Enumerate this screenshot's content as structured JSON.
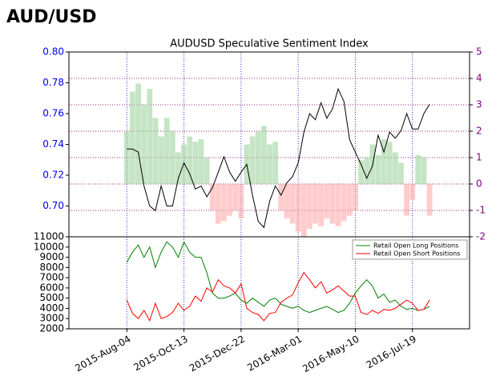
{
  "header": {
    "title": "AUD/USD"
  },
  "chart_data": [
    {
      "type": "line",
      "title": "AUDUSD Speculative Sentiment Index",
      "x": [
        "2015-08-04",
        "2015-08-11",
        "2015-08-18",
        "2015-08-25",
        "2015-09-01",
        "2015-09-08",
        "2015-09-15",
        "2015-09-22",
        "2015-09-29",
        "2015-10-06",
        "2015-10-13",
        "2015-10-20",
        "2015-10-27",
        "2015-11-03",
        "2015-11-10",
        "2015-11-17",
        "2015-11-24",
        "2015-12-01",
        "2015-12-08",
        "2015-12-15",
        "2015-12-22",
        "2015-12-29",
        "2016-01-05",
        "2016-01-12",
        "2016-01-19",
        "2016-01-26",
        "2016-02-02",
        "2016-02-09",
        "2016-02-16",
        "2016-02-23",
        "2016-03-01",
        "2016-03-08",
        "2016-03-15",
        "2016-03-22",
        "2016-03-29",
        "2016-04-05",
        "2016-04-12",
        "2016-04-19",
        "2016-04-26",
        "2016-05-03",
        "2016-05-10",
        "2016-05-17",
        "2016-05-24",
        "2016-05-31",
        "2016-06-07",
        "2016-06-14",
        "2016-06-21",
        "2016-06-28",
        "2016-07-05",
        "2016-07-12",
        "2016-07-19",
        "2016-07-26",
        "2016-08-02",
        "2016-08-09"
      ],
      "xlim": [
        "2015-05-25",
        "2016-09-27"
      ],
      "series": [
        {
          "color": "#000000",
          "values": [
            0.737,
            0.737,
            0.735,
            0.713,
            0.7,
            0.697,
            0.713,
            0.7,
            0.7,
            0.718,
            0.728,
            0.721,
            0.711,
            0.713,
            0.706,
            0.712,
            0.722,
            0.732,
            0.722,
            0.716,
            0.722,
            0.727,
            0.707,
            0.69,
            0.686,
            0.703,
            0.713,
            0.707,
            0.715,
            0.719,
            0.728,
            0.748,
            0.76,
            0.756,
            0.767,
            0.757,
            0.763,
            0.776,
            0.768,
            0.743,
            0.735,
            0.727,
            0.718,
            0.726,
            0.746,
            0.735,
            0.748,
            0.744,
            0.749,
            0.76,
            0.75,
            0.75,
            0.76,
            0.766
          ]
        },
        {
          "type": "bar",
          "axis": "y2",
          "color": "#9fd39f",
          "negative_color": "#ffa8a8",
          "values": [
            2.0,
            3.5,
            3.8,
            3.0,
            3.6,
            2.5,
            1.8,
            2.5,
            2.0,
            1.2,
            1.5,
            1.8,
            1.6,
            1.7,
            1.0,
            -1.0,
            -1.5,
            -1.4,
            -1.2,
            -1.0,
            -1.3,
            1.5,
            1.8,
            2.0,
            2.2,
            1.5,
            1.6,
            -1.0,
            -1.3,
            -1.5,
            -1.8,
            -2.0,
            -1.7,
            -1.5,
            -1.6,
            -1.3,
            -1.5,
            -1.6,
            -1.4,
            -1.2,
            -1.0,
            0.9,
            1.0,
            1.5,
            1.1,
            1.7,
            1.6,
            1.2,
            0.8,
            -1.2,
            -0.6,
            1.1,
            1.0,
            -1.2
          ]
        }
      ],
      "ylim": [
        0.68,
        0.8
      ],
      "yticks": [
        {
          "value": 0.7,
          "label": "0.70"
        },
        0.72,
        0.74,
        0.76,
        0.78,
        {
          "value": 0.8,
          "label": "0.80"
        }
      ],
      "y2lim": [
        -2,
        5
      ],
      "y2ticks": [
        -2,
        -1,
        0,
        1,
        2,
        3,
        4,
        5
      ]
    },
    {
      "type": "line",
      "x": [
        "2015-08-04",
        "2015-08-11",
        "2015-08-18",
        "2015-08-25",
        "2015-09-01",
        "2015-09-08",
        "2015-09-15",
        "2015-09-22",
        "2015-09-29",
        "2015-10-06",
        "2015-10-13",
        "2015-10-20",
        "2015-10-27",
        "2015-11-03",
        "2015-11-10",
        "2015-11-17",
        "2015-11-24",
        "2015-12-01",
        "2015-12-08",
        "2015-12-15",
        "2015-12-22",
        "2015-12-29",
        "2016-01-05",
        "2016-01-12",
        "2016-01-19",
        "2016-01-26",
        "2016-02-02",
        "2016-02-09",
        "2016-02-16",
        "2016-02-23",
        "2016-03-01",
        "2016-03-08",
        "2016-03-15",
        "2016-03-22",
        "2016-03-29",
        "2016-04-05",
        "2016-04-12",
        "2016-04-19",
        "2016-04-26",
        "2016-05-03",
        "2016-05-10",
        "2016-05-17",
        "2016-05-24",
        "2016-05-31",
        "2016-06-07",
        "2016-06-14",
        "2016-06-21",
        "2016-06-28",
        "2016-07-05",
        "2016-07-12",
        "2016-07-19",
        "2016-07-26",
        "2016-08-02",
        "2016-08-09"
      ],
      "xlim": [
        "2015-05-25",
        "2016-09-27"
      ],
      "xticks": [
        {
          "value": "2015-08-04",
          "label": "2015-Aug-04"
        },
        {
          "value": "2015-10-13",
          "label": "2015-Oct-13"
        },
        {
          "value": "2015-12-22",
          "label": "2015-Dec-22"
        },
        {
          "value": "2016-03-01",
          "label": "2016-Mar-01"
        },
        {
          "value": "2016-05-10",
          "label": "2016-May-10"
        },
        {
          "value": "2016-07-19",
          "label": "2016-Jul-19"
        }
      ],
      "series": [
        {
          "name": "Retail Open Long Positions",
          "color": "#008000",
          "values": [
            8500,
            9500,
            10200,
            9000,
            10000,
            8000,
            9500,
            10500,
            10000,
            9000,
            10500,
            9500,
            9000,
            9000,
            7500,
            5500,
            5000,
            5000,
            5200,
            5500,
            4800,
            4500,
            5000,
            4600,
            4200,
            4800,
            5000,
            4400,
            4200,
            4000,
            4200,
            3800,
            3600,
            3800,
            4000,
            4200,
            3900,
            3600,
            3800,
            4500,
            5500,
            6200,
            6800,
            6200,
            5000,
            5400,
            4600,
            4800,
            4200,
            3900,
            4000,
            3800,
            3900,
            4200
          ]
        },
        {
          "name": "Retail Open Short Positions",
          "color": "#ff0000",
          "values": [
            4800,
            3500,
            3000,
            3800,
            2800,
            4500,
            3000,
            3200,
            3600,
            4500,
            3800,
            4200,
            5200,
            4700,
            6000,
            5600,
            6800,
            6200,
            6000,
            5500,
            6400,
            4000,
            3600,
            3400,
            2800,
            3500,
            3600,
            4600,
            5000,
            5300,
            6500,
            7500,
            6800,
            6000,
            6600,
            5500,
            5800,
            6200,
            5700,
            5200,
            5200,
            3600,
            3400,
            3800,
            3500,
            3900,
            3800,
            4000,
            4400,
            4800,
            4500,
            3800,
            3900,
            4800
          ]
        }
      ],
      "ylim": [
        2000,
        11000
      ],
      "yticks": [
        2000,
        3000,
        4000,
        5000,
        6000,
        7000,
        8000,
        9000,
        10000,
        11000
      ],
      "legend": "upper right"
    }
  ]
}
